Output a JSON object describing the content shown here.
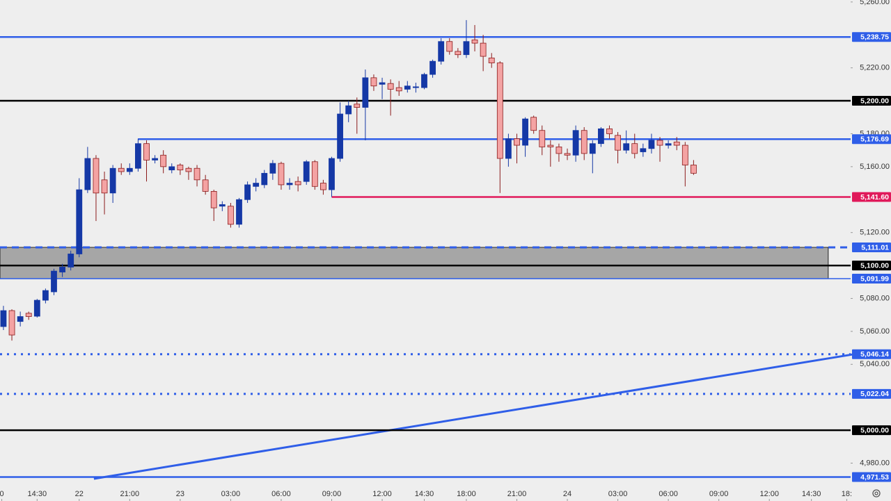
{
  "chart_data": {
    "type": "candlestick",
    "xlim": [
      -0.41,
      100.66
    ],
    "ylim": [
      4957,
      5261.2
    ],
    "up_color": "#1538a6",
    "down_color": "#f4a3a3",
    "down_edge": "#8b1a1a",
    "open": [
      5062.9,
      5072.6,
      5066,
      5071,
      5069.2,
      5078.9,
      5084,
      5096,
      5099,
      5107,
      5146,
      5165,
      5152,
      5144,
      5159,
      5157,
      5159,
      5174,
      5164,
      5167,
      5158,
      5161,
      5159,
      5159,
      5152,
      5145,
      5136,
      5136,
      5125,
      5140,
      5148,
      5149,
      5156,
      5162,
      5149,
      5151,
      5151,
      5163,
      5150,
      5146,
      5165,
      5192,
      5198,
      5196,
      5214,
      5210,
      5210.5,
      5208,
      5207,
      5208,
      5208,
      5216,
      5224,
      5236,
      5230,
      5228,
      5237,
      5235,
      5226,
      5223,
      5165,
      5177,
      5173,
      5190,
      5182,
      5173,
      5172,
      5168,
      5167,
      5182,
      5168,
      5174,
      5183,
      5179,
      5170,
      5174,
      5169,
      5171,
      5176,
      5173,
      5175,
      5173,
      5161
    ],
    "high": [
      5075.5,
      5073.4,
      5072,
      5072,
      5079.7,
      5086,
      5098,
      5101,
      5109,
      5153,
      5172,
      5167,
      5157,
      5161,
      5162,
      5162,
      5177,
      5176,
      5167,
      5170,
      5162,
      5162,
      5160,
      5161,
      5155,
      5146,
      5139,
      5138,
      5141,
      5151,
      5153,
      5158,
      5164,
      5163,
      5153,
      5154,
      5164,
      5164,
      5152,
      5166,
      5199,
      5200,
      5202,
      5219,
      5216,
      5214,
      5213,
      5212,
      5212,
      5211,
      5217,
      5225,
      5238,
      5238,
      5232,
      5249,
      5246,
      5240,
      5229,
      5224,
      5180,
      5180,
      5190,
      5191,
      5185,
      5176,
      5174,
      5171,
      5185,
      5184,
      5176,
      5184,
      5185,
      5181,
      5182,
      5180,
      5174,
      5180,
      5178,
      5176,
      5178,
      5175,
      5164
    ],
    "low": [
      5060.8,
      5054.4,
      5063,
      5067,
      5068.4,
      5077,
      5082,
      5093,
      5097,
      5105,
      5144,
      5127,
      5131,
      5138,
      5155,
      5155,
      5157,
      5151,
      5162,
      5156,
      5156,
      5155,
      5152,
      5148,
      5143,
      5127,
      5133,
      5123,
      5123,
      5138,
      5145,
      5147,
      5152,
      5146,
      5146,
      5145,
      5149,
      5146,
      5143,
      5141.6,
      5163,
      5187,
      5180,
      5176,
      5206,
      5201,
      5191,
      5203,
      5205,
      5205,
      5207,
      5214,
      5222,
      5228,
      5226,
      5226,
      5230,
      5218,
      5220,
      5144,
      5160,
      5162,
      5166,
      5180,
      5167,
      5160,
      5163,
      5164,
      5163,
      5164,
      5156,
      5172,
      5177,
      5162,
      5168,
      5165,
      5166,
      5168,
      5163,
      5171,
      5170,
      5148,
      5155
    ],
    "close": [
      5072.6,
      5057.8,
      5069,
      5069,
      5078.9,
      5084.8,
      5096.6,
      5099,
      5107,
      5146,
      5165,
      5144,
      5144,
      5159,
      5157,
      5159,
      5174,
      5164,
      5165,
      5160,
      5160,
      5158,
      5157,
      5152,
      5145,
      5135,
      5137,
      5125,
      5140,
      5149,
      5150,
      5156,
      5162,
      5149,
      5150,
      5149,
      5163,
      5148,
      5146,
      5165,
      5192,
      5197,
      5196,
      5214,
      5209,
      5211,
      5207,
      5206,
      5209,
      5208.5,
      5216,
      5224,
      5236,
      5230,
      5228,
      5236,
      5235,
      5227,
      5223,
      5165,
      5177,
      5173,
      5189,
      5182,
      5172,
      5172,
      5168,
      5167,
      5182,
      5168,
      5174,
      5183,
      5180,
      5170,
      5174,
      5168,
      5171,
      5176,
      5173,
      5174,
      5173,
      5161,
      5156
    ],
    "xticks": [
      {
        "value": -0.2,
        "label": "0"
      },
      {
        "value": 4,
        "label": "14:30"
      },
      {
        "value": 9,
        "label": "22"
      },
      {
        "value": 15,
        "label": "21:00"
      },
      {
        "value": 21,
        "label": "23"
      },
      {
        "value": 27,
        "label": "03:00"
      },
      {
        "value": 33,
        "label": "06:00"
      },
      {
        "value": 39,
        "label": "09:00"
      },
      {
        "value": 45,
        "label": "12:00"
      },
      {
        "value": 50,
        "label": "14:30"
      },
      {
        "value": 55,
        "label": "18:00"
      },
      {
        "value": 61,
        "label": "21:00"
      },
      {
        "value": 67,
        "label": "24"
      },
      {
        "value": 73,
        "label": "03:00"
      },
      {
        "value": 79,
        "label": "06:00"
      },
      {
        "value": 85,
        "label": "09:00"
      },
      {
        "value": 91,
        "label": "12:00"
      },
      {
        "value": 96,
        "label": "14:30"
      },
      {
        "value": 100.2,
        "label": "18:"
      }
    ],
    "yticks": [
      {
        "value": 5260,
        "label": "5,260.00"
      },
      {
        "value": 5220,
        "label": "5,220.00"
      },
      {
        "value": 5180,
        "label": "5,180.00"
      },
      {
        "value": 5160,
        "label": "5,160.00"
      },
      {
        "value": 5120,
        "label": "5,120.00"
      },
      {
        "value": 5080,
        "label": "5,080.00"
      },
      {
        "value": 5060,
        "label": "5,060.00"
      },
      {
        "value": 5040,
        "label": "5,040.00"
      },
      {
        "value": 4980,
        "label": "4,980.00"
      }
    ],
    "zone": {
      "low": 5091.99,
      "high": 5111.01,
      "x_end": 98.0,
      "color": "#a6a6a6"
    },
    "levels": [
      {
        "value": 5238.75,
        "label": "5,238.75",
        "color": "#2f5ee8",
        "style": "solid"
      },
      {
        "value": 5200.0,
        "label": "5,200.00",
        "color": "#000000",
        "style": "solid"
      },
      {
        "value": 5176.69,
        "label": "5,176.69",
        "color": "#2f5ee8",
        "style": "solid",
        "x_start": 16
      },
      {
        "value": 5141.6,
        "label": "5,141.60",
        "color": "#e0195a",
        "style": "solid",
        "x_start": 39
      },
      {
        "value": 5111.01,
        "label": "5,111.01",
        "color": "#2f5ee8",
        "style": "dashed"
      },
      {
        "value": 5100.0,
        "label": "5,100.00",
        "color": "#000000",
        "style": "solid"
      },
      {
        "value": 5091.99,
        "label": "5,091.99",
        "color": "#2f5ee8",
        "style": "thin"
      },
      {
        "value": 5046.14,
        "label": "5,046.14",
        "color": "#2f5ee8",
        "style": "dotted"
      },
      {
        "value": 5022.04,
        "label": "5,022.04",
        "color": "#2f5ee8",
        "style": "dotted"
      },
      {
        "value": 5000.0,
        "label": "5,000.00",
        "color": "#000000",
        "style": "solid"
      },
      {
        "value": 4971.53,
        "label": "4,971.53",
        "color": "#2f5ee8",
        "style": "solid"
      }
    ],
    "trendline": {
      "x": [
        10.75,
        100.9
      ],
      "y": [
        4970.5,
        5046
      ],
      "color": "#2f5ee8"
    }
  }
}
